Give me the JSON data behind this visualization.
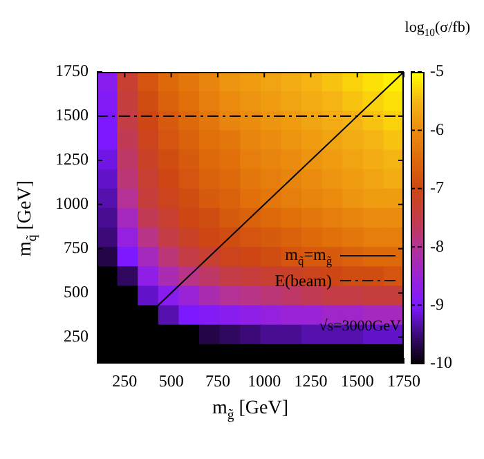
{
  "chart_data": {
    "type": "heatmap",
    "clabel": "log$_{10}$(σ/fb)",
    "xlabel": "m$_{g̃}$ [GeV]",
    "ylabel": "m$_{q̃}$ [GeV]",
    "x": [
      155,
      265,
      375,
      485,
      595,
      705,
      815,
      925,
      1035,
      1145,
      1255,
      1365,
      1475,
      1585,
      1695
    ],
    "y": [
      1695,
      1585,
      1475,
      1365,
      1255,
      1145,
      1035,
      925,
      815,
      705,
      595,
      485,
      375,
      265,
      155
    ],
    "xlim": [
      100,
      1750
    ],
    "ylim": [
      100,
      1750
    ],
    "xticks": [
      250,
      500,
      750,
      1000,
      1250,
      1500,
      1750
    ],
    "yticks": [
      250,
      500,
      750,
      1000,
      1250,
      1500,
      1750
    ],
    "clim": [
      -10,
      -5
    ],
    "cticks": [
      -10,
      -9,
      -8,
      -7,
      -6,
      -5
    ],
    "cells": [
      [
        -8.8,
        -7.3,
        -6.8,
        -6.5,
        -6.3,
        -6.1,
        -5.9,
        -5.8,
        -5.7,
        -5.6,
        -5.5,
        -5.4,
        -5.3,
        -5.2,
        -5.1
      ],
      [
        -8.9,
        -7.4,
        -6.9,
        -6.6,
        -6.4,
        -6.2,
        -6.0,
        -5.9,
        -5.8,
        -5.7,
        -5.6,
        -5.5,
        -5.4,
        -5.3,
        -5.2
      ],
      [
        -9.0,
        -7.5,
        -7.0,
        -6.7,
        -6.5,
        -6.3,
        -6.1,
        -6.0,
        -5.9,
        -5.8,
        -5.7,
        -5.6,
        -5.5,
        -5.4,
        -5.3
      ],
      [
        -9.0,
        -7.6,
        -7.1,
        -6.8,
        -6.6,
        -6.4,
        -6.3,
        -6.1,
        -6.0,
        -5.9,
        -5.8,
        -5.7,
        -5.6,
        -5.5,
        -5.4
      ],
      [
        -9.1,
        -7.7,
        -7.2,
        -6.9,
        -6.7,
        -6.5,
        -6.4,
        -6.2,
        -6.1,
        -6.0,
        -5.9,
        -5.8,
        -5.7,
        -5.6,
        -5.5
      ],
      [
        -9.2,
        -7.8,
        -7.3,
        -7.0,
        -6.8,
        -6.6,
        -6.5,
        -6.3,
        -6.2,
        -6.1,
        -6.0,
        -5.9,
        -5.8,
        -5.7,
        -5.6
      ],
      [
        -9.3,
        -8.0,
        -7.4,
        -7.1,
        -6.9,
        -6.7,
        -6.6,
        -6.4,
        -6.3,
        -6.2,
        -6.1,
        -6.0,
        -5.9,
        -5.8,
        -5.8
      ],
      [
        -9.4,
        -8.3,
        -7.6,
        -7.3,
        -7.0,
        -6.9,
        -6.7,
        -6.6,
        -6.5,
        -6.4,
        -6.3,
        -6.2,
        -6.1,
        -6.0,
        -6.0
      ],
      [
        -9.5,
        -8.6,
        -7.9,
        -7.5,
        -7.2,
        -7.0,
        -6.9,
        -6.8,
        -6.7,
        -6.6,
        -6.5,
        -6.4,
        -6.3,
        -6.2,
        -6.2
      ],
      [
        -9.7,
        -9.0,
        -8.3,
        -7.8,
        -7.5,
        -7.3,
        -7.1,
        -7.0,
        -6.9,
        -6.8,
        -6.7,
        -6.7,
        -6.6,
        -6.5,
        -6.5
      ],
      [
        -10,
        -9.6,
        -8.7,
        -8.2,
        -7.9,
        -7.7,
        -7.5,
        -7.4,
        -7.3,
        -7.2,
        -7.1,
        -7.0,
        -6.9,
        -6.9,
        -6.8
      ],
      [
        -10,
        -10,
        -9.2,
        -8.8,
        -8.5,
        -8.2,
        -8.0,
        -7.9,
        -7.8,
        -7.7,
        -7.6,
        -7.5,
        -7.5,
        -7.4,
        -7.4
      ],
      [
        -10,
        -10,
        -10,
        -9.3,
        -9.0,
        -8.9,
        -8.8,
        -8.7,
        -8.6,
        -8.5,
        -8.5,
        -8.4,
        -8.4,
        -8.3,
        -8.3
      ],
      [
        -10,
        -10,
        -10,
        -10,
        -10,
        -9.7,
        -9.6,
        -9.5,
        -9.4,
        -9.4,
        -9.3,
        -9.3,
        -9.3,
        -9.2,
        -9.2
      ],
      [
        -10,
        -10,
        -10,
        -10,
        -10,
        -10,
        -10,
        -10,
        -10,
        -10,
        -10,
        -10,
        -10,
        -10,
        -10
      ]
    ],
    "series": [
      {
        "name": "m$_{q̃}$=m$_{g̃}$",
        "type": "line",
        "color": "#000000",
        "x": [
          350,
          1750
        ],
        "values": [
          350,
          1750
        ],
        "line_style": "solid"
      }
    ],
    "ref_lines": [
      {
        "axis": "y",
        "value": 1500,
        "label": "E(beam)",
        "color": "#000000",
        "line_style": "dashed"
      }
    ],
    "legend": "bottom right",
    "annotations": [
      "√s=3000GeV"
    ]
  }
}
